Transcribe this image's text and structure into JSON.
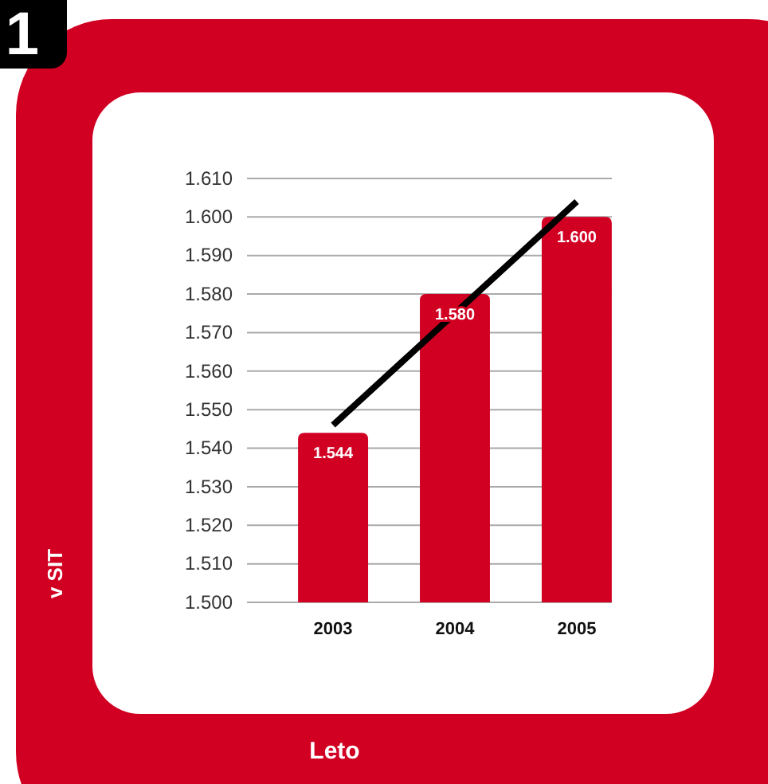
{
  "chart_data": {
    "type": "bar",
    "categories": [
      "2003",
      "2004",
      "2005"
    ],
    "series": [
      {
        "color": "#d10022",
        "values": [
          1.544,
          1.58,
          1.6
        ],
        "value_labels": [
          "1.544",
          "1.580",
          "1.600"
        ]
      },
      {
        "type": "line",
        "color": "#000000",
        "values": [
          1.546,
          1.575,
          1.604
        ]
      }
    ],
    "xlabel": "Leto",
    "annotations": [
      "1",
      "v SIT"
    ],
    "ylim": [
      1.5,
      1.61
    ],
    "yticks": [
      {
        "value": 1.5,
        "label": "1.500"
      },
      {
        "value": 1.51,
        "label": "1.510"
      },
      {
        "value": 1.52,
        "label": "1.520"
      },
      {
        "value": 1.53,
        "label": "1.530"
      },
      {
        "value": 1.54,
        "label": "1.540"
      },
      {
        "value": 1.55,
        "label": "1.550"
      },
      {
        "value": 1.56,
        "label": "1.560"
      },
      {
        "value": 1.57,
        "label": "1.570"
      },
      {
        "value": 1.58,
        "label": "1.580"
      },
      {
        "value": 1.59,
        "label": "1.590"
      },
      {
        "value": 1.6,
        "label": "1.600"
      },
      {
        "value": 1.61,
        "label": "1.610"
      }
    ],
    "grid": "y",
    "marker": "none",
    "line_style": "solid"
  }
}
